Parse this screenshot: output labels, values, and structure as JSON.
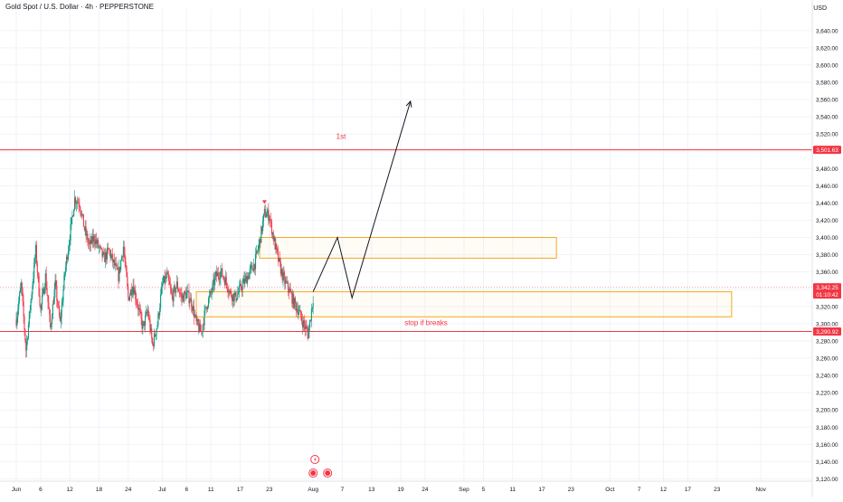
{
  "header": {
    "title": "Gold Spot / U.S. Dollar · 4h · PEPPERSTONE",
    "currency": "USD"
  },
  "colors": {
    "up": "#089981",
    "down": "#f23645",
    "resistance_line": "#f23645",
    "zone_border": "#f5a623",
    "price_line": "#f7a9a8",
    "grid": "#f0f3fa",
    "axis_text": "#131722",
    "drawing": "#131722"
  },
  "chart_data": {
    "type": "candlestick",
    "ylim": [
      3110,
      3650
    ],
    "y_ticks": [
      3120,
      3140,
      3160,
      3180,
      3200,
      3220,
      3240,
      3260,
      3280,
      3300,
      3320,
      3340,
      3360,
      3380,
      3400,
      3420,
      3440,
      3460,
      3480,
      3500,
      3520,
      3540,
      3560,
      3580,
      3600,
      3620,
      3640
    ],
    "y_tick_labels": [
      "3,120.00",
      "3,140.00",
      "3,160.00",
      "3,180.00",
      "3,200.00",
      "3,220.00",
      "3,240.00",
      "3,260.00",
      "3,280.00",
      "3,300.00",
      "3,320.00",
      "3,340.00",
      "3,360.00",
      "3,380.00",
      "3,400.00",
      "3,420.00",
      "3,440.00",
      "3,460.00",
      "3,480.00",
      "3,500.00",
      "3,520.00",
      "3,540.00",
      "3,560.00",
      "3,580.00",
      "3,600.00",
      "3,620.00",
      "3,640.00"
    ],
    "x_start": "2025-06-01",
    "x_ticks": [
      {
        "date": "2025-06-01",
        "label": "Jun"
      },
      {
        "date": "2025-06-06",
        "label": "6"
      },
      {
        "date": "2025-06-12",
        "label": "12"
      },
      {
        "date": "2025-06-18",
        "label": "18"
      },
      {
        "date": "2025-06-24",
        "label": "24"
      },
      {
        "date": "2025-07-01",
        "label": "Jul"
      },
      {
        "date": "2025-07-06",
        "label": "6"
      },
      {
        "date": "2025-07-11",
        "label": "11"
      },
      {
        "date": "2025-07-17",
        "label": "17"
      },
      {
        "date": "2025-07-23",
        "label": "23"
      },
      {
        "date": "2025-08-01",
        "label": "Aug"
      },
      {
        "date": "2025-08-07",
        "label": "7"
      },
      {
        "date": "2025-08-13",
        "label": "13"
      },
      {
        "date": "2025-08-19",
        "label": "19"
      },
      {
        "date": "2025-08-24",
        "label": "24"
      },
      {
        "date": "2025-09-01",
        "label": "Sep"
      },
      {
        "date": "2025-09-05",
        "label": "5"
      },
      {
        "date": "2025-09-11",
        "label": "11"
      },
      {
        "date": "2025-09-17",
        "label": "17"
      },
      {
        "date": "2025-09-23",
        "label": "23"
      },
      {
        "date": "2025-10-01",
        "label": "Oct"
      },
      {
        "date": "2025-10-07",
        "label": "7"
      },
      {
        "date": "2025-10-12",
        "label": "12"
      },
      {
        "date": "2025-10-17",
        "label": "17"
      },
      {
        "date": "2025-10-23",
        "label": "23"
      },
      {
        "date": "2025-11-01",
        "label": "Nov"
      }
    ],
    "price_path": [
      [
        "2025-06-01",
        3305
      ],
      [
        "2025-06-02",
        3345
      ],
      [
        "2025-06-03",
        3270
      ],
      [
        "2025-06-05",
        3385
      ],
      [
        "2025-06-06",
        3315
      ],
      [
        "2025-06-07",
        3355
      ],
      [
        "2025-06-08",
        3295
      ],
      [
        "2025-06-09",
        3345
      ],
      [
        "2025-06-10",
        3300
      ],
      [
        "2025-06-11",
        3360
      ],
      [
        "2025-06-13",
        3445
      ],
      [
        "2025-06-14",
        3440
      ],
      [
        "2025-06-15",
        3410
      ],
      [
        "2025-06-16",
        3390
      ],
      [
        "2025-06-17",
        3400
      ],
      [
        "2025-06-19",
        3375
      ],
      [
        "2025-06-20",
        3385
      ],
      [
        "2025-06-21",
        3370
      ],
      [
        "2025-06-22",
        3355
      ],
      [
        "2025-06-23",
        3390
      ],
      [
        "2025-06-24",
        3330
      ],
      [
        "2025-06-25",
        3345
      ],
      [
        "2025-06-26",
        3320
      ],
      [
        "2025-06-27",
        3295
      ],
      [
        "2025-06-28",
        3315
      ],
      [
        "2025-06-29",
        3275
      ],
      [
        "2025-06-30",
        3300
      ],
      [
        "2025-07-01",
        3345
      ],
      [
        "2025-07-02",
        3355
      ],
      [
        "2025-07-03",
        3330
      ],
      [
        "2025-07-04",
        3345
      ],
      [
        "2025-07-05",
        3330
      ],
      [
        "2025-07-06",
        3335
      ],
      [
        "2025-07-07",
        3325
      ],
      [
        "2025-07-08",
        3300
      ],
      [
        "2025-07-09",
        3290
      ],
      [
        "2025-07-10",
        3320
      ],
      [
        "2025-07-11",
        3335
      ],
      [
        "2025-07-12",
        3355
      ],
      [
        "2025-07-13",
        3360
      ],
      [
        "2025-07-14",
        3350
      ],
      [
        "2025-07-15",
        3335
      ],
      [
        "2025-07-16",
        3330
      ],
      [
        "2025-07-17",
        3340
      ],
      [
        "2025-07-18",
        3350
      ],
      [
        "2025-07-19",
        3360
      ],
      [
        "2025-07-20",
        3370
      ],
      [
        "2025-07-21",
        3395
      ],
      [
        "2025-07-22",
        3428
      ],
      [
        "2025-07-23",
        3425
      ],
      [
        "2025-07-24",
        3395
      ],
      [
        "2025-07-25",
        3370
      ],
      [
        "2025-07-26",
        3350
      ],
      [
        "2025-07-27",
        3340
      ],
      [
        "2025-07-28",
        3325
      ],
      [
        "2025-07-29",
        3315
      ],
      [
        "2025-07-30",
        3300
      ],
      [
        "2025-07-31",
        3288
      ],
      [
        "2025-08-01",
        3330
      ]
    ],
    "last_price": 3342.25,
    "last_price_label": "3,342.25",
    "countdown": "01:10:42",
    "levels": [
      {
        "price": 3501.63,
        "label": "3,501.63",
        "text": "1st"
      },
      {
        "price": 3290.92,
        "label": "3,290.92",
        "text": "stop if breaks"
      }
    ],
    "zones": [
      {
        "x1": "2025-07-21",
        "x2": "2025-09-20",
        "y_low": 3376,
        "y_high": 3400
      },
      {
        "x1": "2025-07-08",
        "x2": "2025-10-26",
        "y_low": 3308,
        "y_high": 3337
      }
    ],
    "projection": [
      [
        "2025-08-01",
        3337
      ],
      [
        "2025-08-06",
        3400
      ],
      [
        "2025-08-09",
        3330
      ],
      [
        "2025-08-21",
        3558
      ]
    ],
    "high_marker": {
      "date": "2025-07-22",
      "price": 3438
    }
  }
}
